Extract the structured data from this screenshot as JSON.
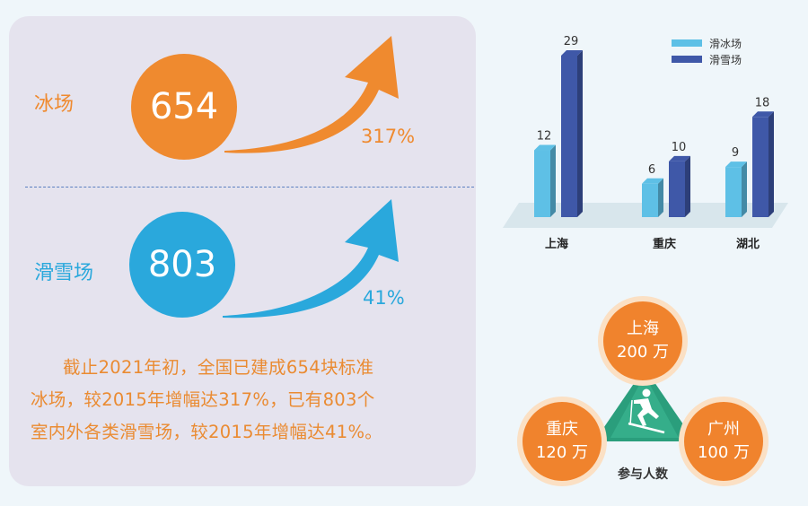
{
  "rinks": {
    "label": "冰场",
    "count": "654",
    "growth": "317%",
    "color": "#ef8a2f"
  },
  "ski": {
    "label": "滑雪场",
    "count": "803",
    "growth": "41%",
    "color": "#2aa8dc"
  },
  "summary": {
    "line1": "截止2021年初，全国已建成654块标准",
    "line2": "冰场，较2015年增幅达317%，已有803个",
    "line3": "室内外各类滑雪场，较2015年增幅达41%。"
  },
  "chart_data": [
    {
      "type": "bar",
      "categories": [
        "上海",
        "重庆",
        "湖北"
      ],
      "series": [
        {
          "name": "滑冰场",
          "values": [
            12,
            6,
            9
          ],
          "color": "#5ec0e6"
        },
        {
          "name": "滑雪场",
          "values": [
            29,
            10,
            18
          ],
          "color": "#3f58a8"
        }
      ],
      "ylim": [
        0,
        29
      ],
      "legend": "top-right"
    }
  ],
  "participants": {
    "label": "参与人数",
    "items": [
      {
        "city": "上海",
        "value": "200 万"
      },
      {
        "city": "重庆",
        "value": "120 万"
      },
      {
        "city": "广州",
        "value": "100 万"
      }
    ],
    "icon": "skier-icon",
    "icon_bg": "#2a9e7c"
  }
}
